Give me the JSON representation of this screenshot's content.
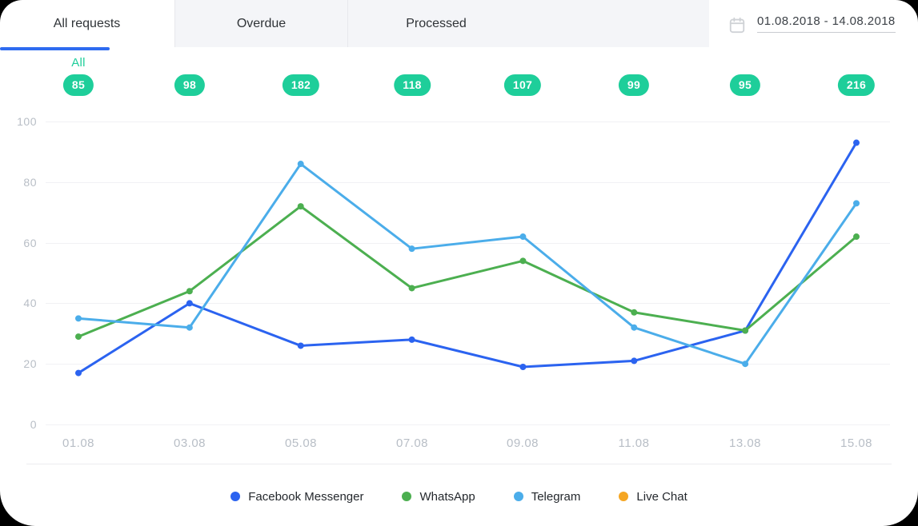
{
  "tabs": [
    {
      "label": "All requests",
      "active": true
    },
    {
      "label": "Overdue",
      "active": false
    },
    {
      "label": "Processed",
      "active": false
    }
  ],
  "date_range": {
    "value": "01.08.2018 - 14.08.2018"
  },
  "totals": {
    "label": "All",
    "badge_color": "#1ECE9A",
    "badges": [
      "85",
      "98",
      "182",
      "118",
      "107",
      "99",
      "95",
      "216"
    ]
  },
  "chart_data": {
    "type": "line",
    "x": [
      "01.08",
      "03.08",
      "05.08",
      "07.08",
      "09.08",
      "11.08",
      "13.08",
      "15.08"
    ],
    "series": [
      {
        "name": "Facebook Messenger",
        "color": "#2B63F0",
        "values": [
          17,
          40,
          26,
          28,
          19,
          21,
          31,
          93
        ]
      },
      {
        "name": "WhatsApp",
        "color": "#4CAF50",
        "values": [
          29,
          44,
          72,
          45,
          54,
          37,
          31,
          62
        ]
      },
      {
        "name": "Telegram",
        "color": "#4BADEA",
        "values": [
          35,
          32,
          86,
          58,
          62,
          32,
          20,
          73
        ]
      },
      {
        "name": "Live Chat",
        "color": "#F5A623",
        "values": []
      }
    ],
    "ylim": [
      0,
      100
    ],
    "yticks": [
      0,
      20,
      40,
      60,
      80,
      100
    ],
    "ytick_labels": [
      "100",
      "80",
      "60",
      "40",
      "20",
      "0"
    ],
    "grid": true,
    "legend_position": "bottom"
  },
  "colors": {
    "accent_blue": "#2E6BF0",
    "tab_bg": "#f4f5f8"
  }
}
